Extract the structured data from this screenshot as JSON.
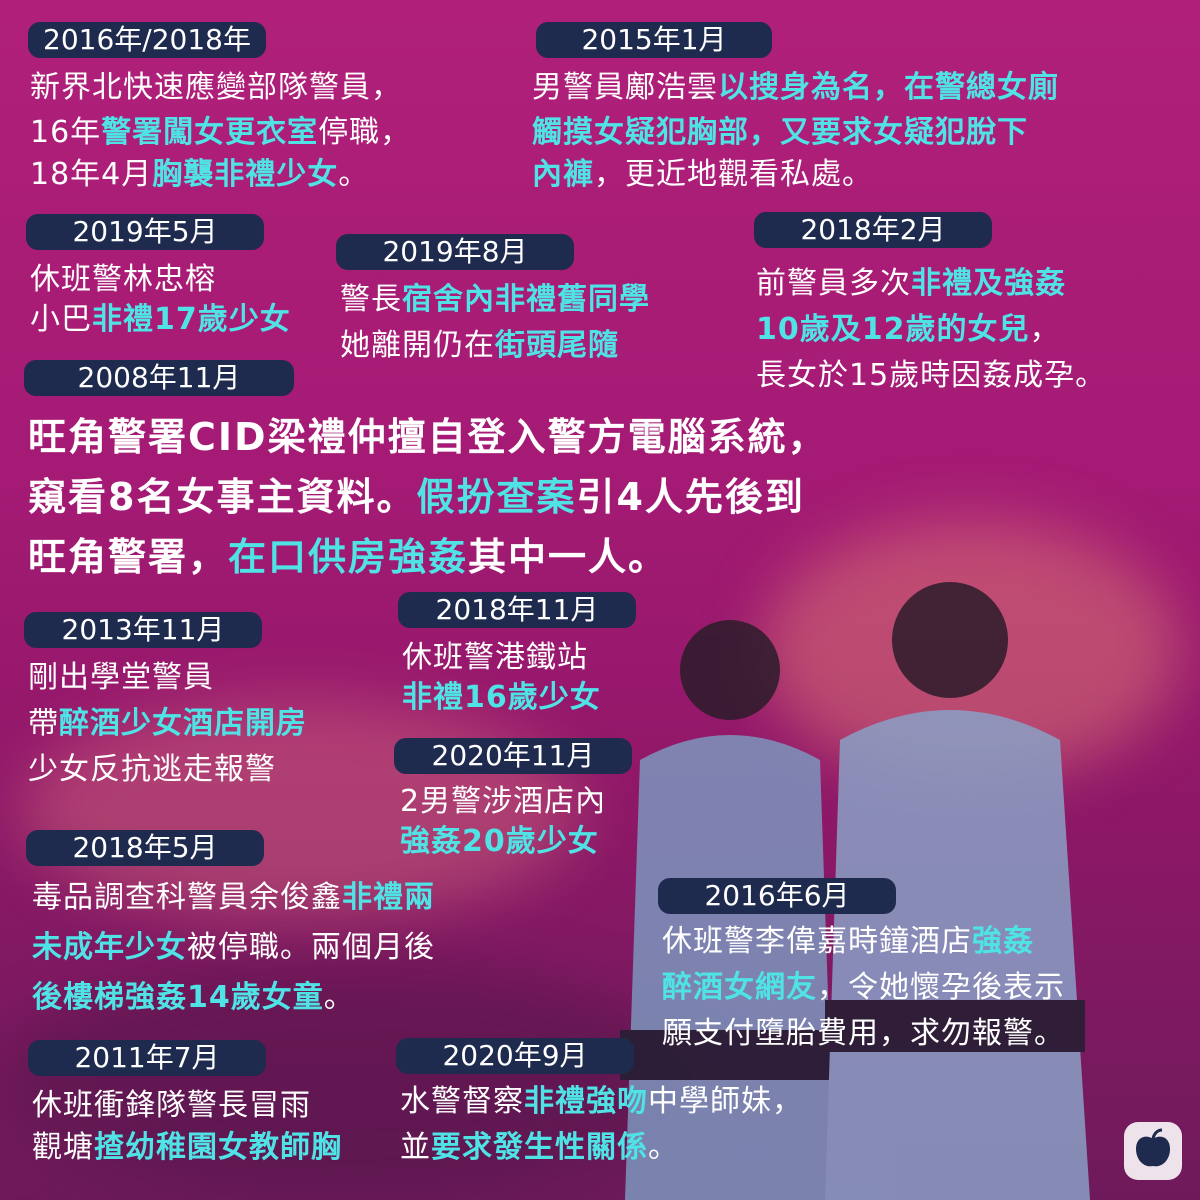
{
  "colors": {
    "background": "#a41a74",
    "tag": "#1e2a4e",
    "highlight": "#4fe3e6",
    "text": "#ffffff"
  },
  "events": [
    {
      "date": "2016年/2018年",
      "lines": [
        [
          {
            "t": "新界北快速應變部隊警員，"
          }
        ],
        [
          {
            "t": "16年"
          },
          {
            "t": "警署闖女更衣室",
            "h": true
          },
          {
            "t": "停職，"
          }
        ],
        [
          {
            "t": "18年4月"
          },
          {
            "t": "胸襲非禮少女",
            "h": true
          },
          {
            "t": "。"
          }
        ]
      ]
    },
    {
      "date": "2015年1月",
      "lines": [
        [
          {
            "t": "男警員鄺浩雲"
          },
          {
            "t": "以搜身為名，在警總女廁",
            "h": true
          }
        ],
        [
          {
            "t": "觸摸女疑犯胸部，又要求女疑犯脫下",
            "h": true
          }
        ],
        [
          {
            "t": "內褲",
            "h": true
          },
          {
            "t": "，更近地觀看私處。"
          }
        ]
      ]
    },
    {
      "date": "2019年5月",
      "lines": [
        [
          {
            "t": "休班警林忠榕"
          }
        ],
        [
          {
            "t": "小巴"
          },
          {
            "t": "非禮17歲少女",
            "h": true
          }
        ]
      ]
    },
    {
      "date": "2019年8月",
      "lines": [
        [
          {
            "t": "警長"
          },
          {
            "t": "宿舍內非禮舊同學",
            "h": true
          }
        ],
        [
          {
            "t": "她離開仍在"
          },
          {
            "t": "街頭尾隨",
            "h": true
          }
        ]
      ]
    },
    {
      "date": "2018年2月",
      "lines": [
        [
          {
            "t": "前警員多次"
          },
          {
            "t": "非禮及強姦",
            "h": true
          }
        ],
        [
          {
            "t": "10歲及12歲的女兒",
            "h": true
          },
          {
            "t": "，"
          }
        ],
        [
          {
            "t": "長女於15歲時因姦成孕。"
          }
        ]
      ]
    },
    {
      "date": "2008年11月",
      "lines": [
        [
          {
            "t": "旺角警署CID梁禮仲擅自登入警方電腦系統，"
          }
        ],
        [
          {
            "t": "窺看8名女事主資料。"
          },
          {
            "t": "假扮查案",
            "h": true
          },
          {
            "t": "引4人先後到"
          }
        ],
        [
          {
            "t": "旺角警署，"
          },
          {
            "t": "在口供房強姦",
            "h": true
          },
          {
            "t": "其中一人。"
          }
        ]
      ]
    },
    {
      "date": "2013年11月",
      "lines": [
        [
          {
            "t": "剛出學堂警員"
          }
        ],
        [
          {
            "t": "帶"
          },
          {
            "t": "醉酒少女酒店開房",
            "h": true
          }
        ],
        [
          {
            "t": "少女反抗逃走報警"
          }
        ]
      ]
    },
    {
      "date": "2018年11月",
      "lines": [
        [
          {
            "t": "休班警港鐵站"
          }
        ],
        [
          {
            "t": "非禮16歲少女",
            "h": true
          }
        ]
      ]
    },
    {
      "date": "2020年11月",
      "lines": [
        [
          {
            "t": "2男警涉酒店內"
          }
        ],
        [
          {
            "t": "強姦20歲少女",
            "h": true
          }
        ]
      ]
    },
    {
      "date": "2018年5月",
      "lines": [
        [
          {
            "t": "毒品調查科警員余俊鑫"
          },
          {
            "t": "非禮兩",
            "h": true
          }
        ],
        [
          {
            "t": "未成年少女",
            "h": true
          },
          {
            "t": "被停職。兩個月後"
          }
        ],
        [
          {
            "t": "後樓梯強姦14歲女童",
            "h": true
          },
          {
            "t": "。"
          }
        ]
      ]
    },
    {
      "date": "2016年6月",
      "lines": [
        [
          {
            "t": "休班警李偉嘉時鐘酒店"
          },
          {
            "t": "強姦",
            "h": true
          }
        ],
        [
          {
            "t": "醉酒女網友",
            "h": true
          },
          {
            "t": "，令她懷孕後表示"
          }
        ],
        [
          {
            "t": "願支付墮胎費用，求勿報警。"
          }
        ]
      ]
    },
    {
      "date": "2011年7月",
      "lines": [
        [
          {
            "t": "休班衝鋒隊警長冒雨"
          }
        ],
        [
          {
            "t": "觀塘"
          },
          {
            "t": "揸幼稚園女教師胸",
            "h": true
          }
        ]
      ]
    },
    {
      "date": "2020年9月",
      "lines": [
        [
          {
            "t": "水警督察"
          },
          {
            "t": "非禮強吻",
            "h": true
          },
          {
            "t": "中學師妹，"
          }
        ],
        [
          {
            "t": "並"
          },
          {
            "t": "要求發生性關係",
            "h": true
          },
          {
            "t": "。"
          }
        ]
      ]
    }
  ],
  "logo": {
    "icon": "apple-logo-icon"
  }
}
